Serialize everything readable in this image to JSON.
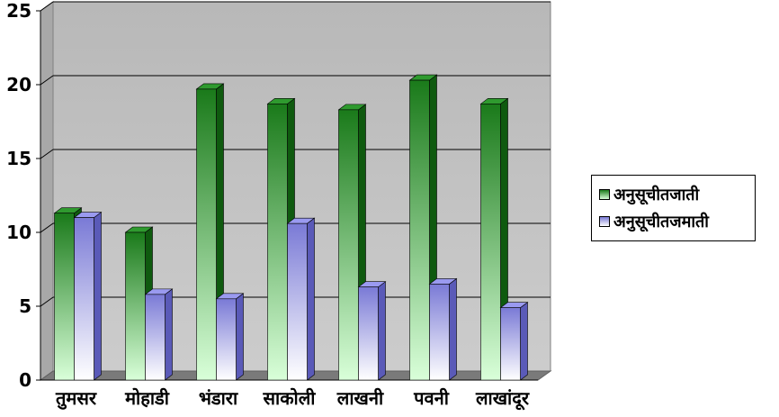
{
  "chart_data": {
    "type": "bar",
    "categories": [
      "तुमसर",
      "मोहाडी",
      "भंडारा",
      "साकोली",
      "लाखनी",
      "पवनी",
      "लाखांदूर"
    ],
    "series": [
      {
        "name": "अनुसूचीतजाती",
        "values": [
          11.3,
          10.0,
          19.7,
          18.7,
          18.3,
          20.3,
          18.7
        ],
        "color": "#1e8a1e"
      },
      {
        "name": "अनुसूचीतजमाती",
        "values": [
          11.0,
          5.8,
          5.5,
          10.6,
          6.3,
          6.5,
          4.9
        ],
        "color": "#8f8fe6"
      }
    ],
    "title": "",
    "xlabel": "",
    "ylabel": "",
    "ylim": [
      0,
      25
    ],
    "yticks": [
      "0",
      "5",
      "10",
      "15",
      "20",
      "25"
    ],
    "grid": true,
    "legend": "right",
    "plot_background": "#c0c0c0",
    "three_d": true
  }
}
